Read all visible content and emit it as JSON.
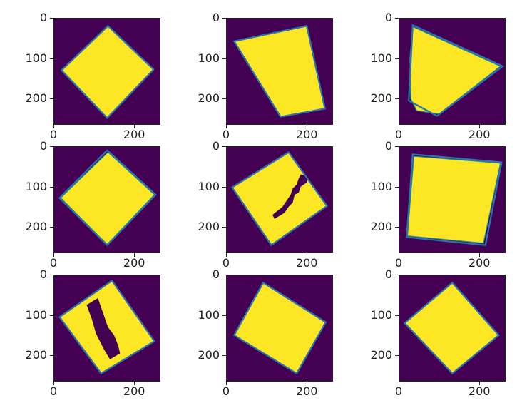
{
  "chart_data": {
    "type": "image-grid",
    "title": "",
    "grid": {
      "rows": 3,
      "cols": 3
    },
    "colors": {
      "background": "#440154",
      "fill": "#fde725",
      "outline": "#2c72b0",
      "edge": "#21918c"
    },
    "axes": {
      "xlim": [
        0,
        265
      ],
      "ylim": [
        265,
        0
      ],
      "xticks": [
        0,
        200
      ],
      "yticks": [
        0,
        100,
        200
      ],
      "xtick_labels": [
        "0",
        "200"
      ],
      "ytick_labels": [
        "0",
        "100",
        "200"
      ],
      "grid": false
    },
    "panels": [
      {
        "id": 1,
        "row": 0,
        "col": 0,
        "mask": [
          [
            135,
            20
          ],
          [
            248,
            128
          ],
          [
            133,
            248
          ],
          [
            20,
            130
          ]
        ],
        "outline": [
          [
            135,
            20
          ],
          [
            248,
            128
          ],
          [
            133,
            248
          ],
          [
            20,
            130
          ]
        ],
        "holes": []
      },
      {
        "id": 2,
        "row": 0,
        "col": 1,
        "mask": [
          [
            20,
            58
          ],
          [
            200,
            20
          ],
          [
            245,
            225
          ],
          [
            135,
            245
          ]
        ],
        "outline": [
          [
            20,
            58
          ],
          [
            200,
            20
          ],
          [
            245,
            225
          ],
          [
            135,
            245
          ]
        ],
        "holes": []
      },
      {
        "id": 3,
        "row": 0,
        "col": 2,
        "mask": [
          [
            35,
            22
          ],
          [
            252,
            120
          ],
          [
            100,
            238
          ],
          [
            45,
            230
          ],
          [
            30,
            200
          ],
          [
            28,
            100
          ]
        ],
        "outline": [
          [
            35,
            18
          ],
          [
            258,
            120
          ],
          [
            95,
            243
          ],
          [
            25,
            205
          ]
        ],
        "holes": []
      },
      {
        "id": 4,
        "row": 1,
        "col": 0,
        "mask": [
          [
            135,
            15
          ],
          [
            250,
            120
          ],
          [
            133,
            243
          ],
          [
            18,
            128
          ]
        ],
        "outline": [
          [
            133,
            10
          ],
          [
            253,
            120
          ],
          [
            133,
            245
          ],
          [
            15,
            128
          ]
        ],
        "holes": []
      },
      {
        "id": 5,
        "row": 1,
        "col": 1,
        "mask": [
          [
            155,
            15
          ],
          [
            250,
            148
          ],
          [
            112,
            245
          ],
          [
            15,
            102
          ]
        ],
        "outline": [
          [
            155,
            15
          ],
          [
            250,
            148
          ],
          [
            112,
            245
          ],
          [
            15,
            102
          ]
        ],
        "holes": [
          [
            [
              185,
              70
            ],
            [
              205,
              75
            ],
            [
              200,
              90
            ],
            [
              185,
              100
            ],
            [
              180,
              115
            ],
            [
              170,
              120
            ],
            [
              165,
              140
            ],
            [
              155,
              150
            ],
            [
              145,
              165
            ],
            [
              120,
              180
            ],
            [
              115,
              170
            ],
            [
              140,
              150
            ],
            [
              150,
              135
            ],
            [
              160,
              120
            ],
            [
              165,
              105
            ],
            [
              175,
              95
            ],
            [
              180,
              80
            ]
          ]
        ]
      },
      {
        "id": 6,
        "row": 1,
        "col": 2,
        "mask": [
          [
            38,
            25
          ],
          [
            252,
            42
          ],
          [
            210,
            240
          ],
          [
            22,
            222
          ]
        ],
        "outline": [
          [
            35,
            20
          ],
          [
            255,
            40
          ],
          [
            215,
            245
          ],
          [
            20,
            225
          ]
        ],
        "holes": []
      },
      {
        "id": 7,
        "row": 2,
        "col": 0,
        "mask": [
          [
            145,
            15
          ],
          [
            250,
            165
          ],
          [
            118,
            245
          ],
          [
            15,
            105
          ]
        ],
        "outline": [
          [
            145,
            15
          ],
          [
            250,
            165
          ],
          [
            118,
            245
          ],
          [
            15,
            105
          ]
        ],
        "holes": [
          [
            [
              82,
              75
            ],
            [
              110,
              58
            ],
            [
              135,
              130
            ],
            [
              150,
              150
            ],
            [
              160,
              175
            ],
            [
              165,
              195
            ],
            [
              140,
              210
            ],
            [
              125,
              185
            ],
            [
              105,
              145
            ],
            [
              95,
              110
            ]
          ]
        ]
      },
      {
        "id": 8,
        "row": 2,
        "col": 1,
        "mask": [
          [
            92,
            20
          ],
          [
            247,
            118
          ],
          [
            175,
            245
          ],
          [
            20,
            150
          ]
        ],
        "outline": [
          [
            92,
            20
          ],
          [
            247,
            118
          ],
          [
            175,
            245
          ],
          [
            20,
            150
          ]
        ],
        "holes": []
      },
      {
        "id": 9,
        "row": 2,
        "col": 2,
        "mask": [
          [
            133,
            20
          ],
          [
            248,
            150
          ],
          [
            133,
            245
          ],
          [
            15,
            120
          ]
        ],
        "outline": [
          [
            133,
            20
          ],
          [
            248,
            150
          ],
          [
            133,
            245
          ],
          [
            15,
            120
          ]
        ],
        "holes": []
      }
    ]
  }
}
